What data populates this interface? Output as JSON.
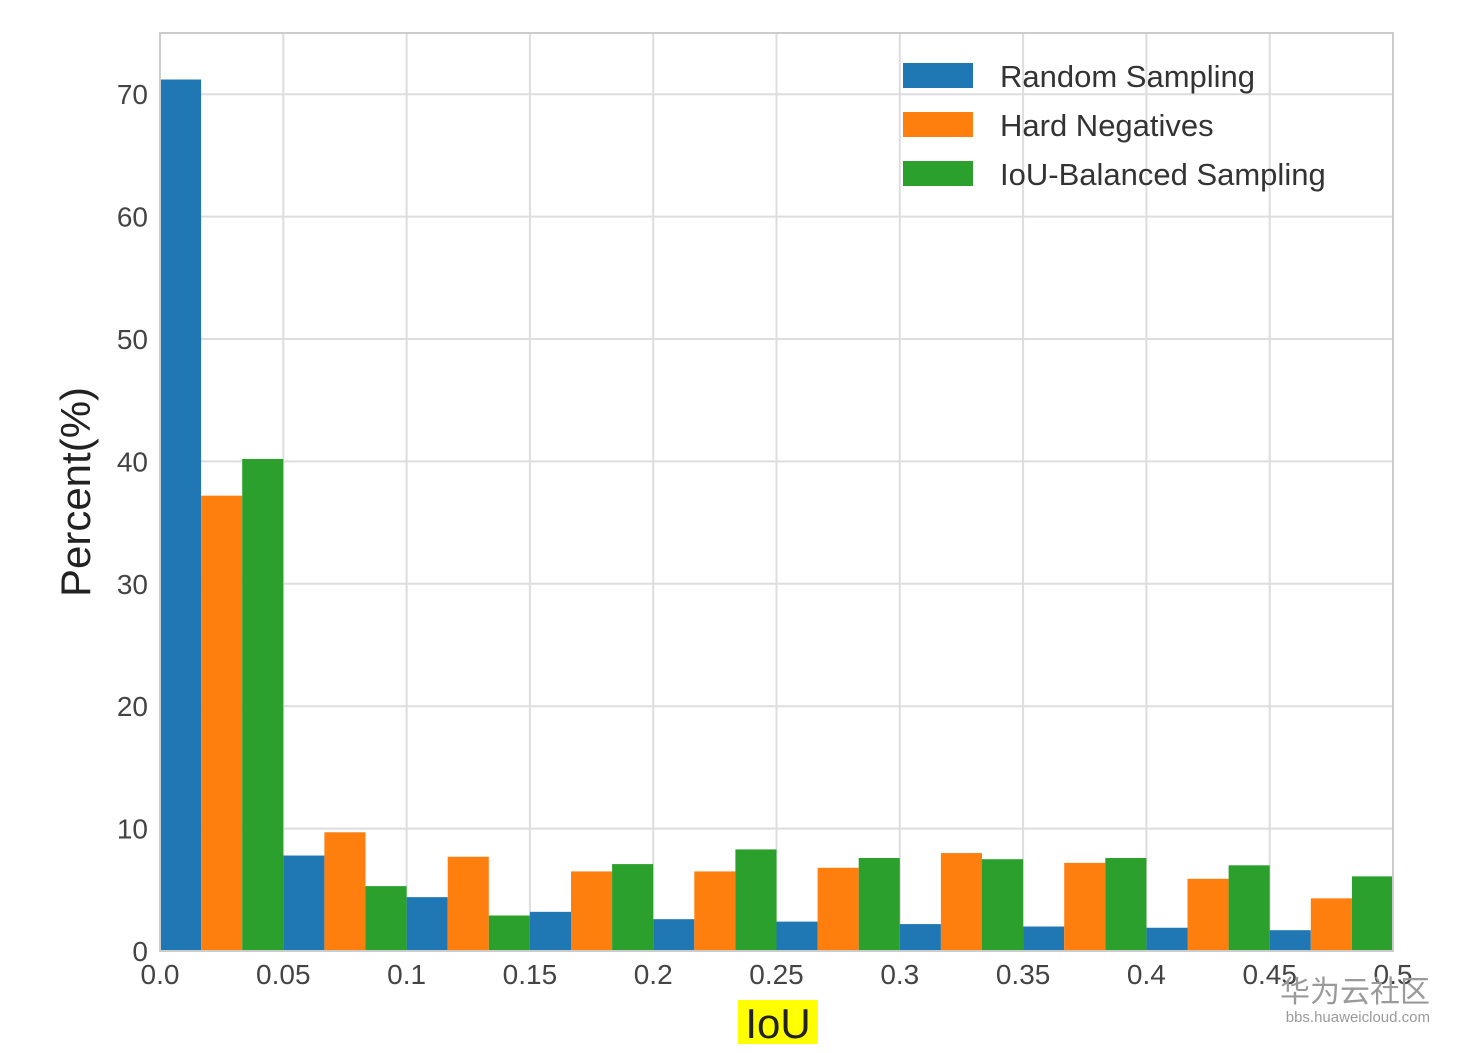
{
  "chart_data": {
    "type": "bar",
    "title": "",
    "xlabel": "IoU",
    "ylabel": "Percent(%)",
    "xlim": [
      0,
      0.5
    ],
    "ylim": [
      0,
      75
    ],
    "bin_width": 0.05,
    "x": [
      0.0,
      0.05,
      0.1,
      0.15,
      0.2,
      0.25,
      0.3,
      0.35,
      0.4,
      0.45
    ],
    "x_tick_labels": [
      "0.0",
      "0.05",
      "0.1",
      "0.15",
      "0.2",
      "0.25",
      "0.3",
      "0.35",
      "0.4",
      "0.45",
      "0.5"
    ],
    "y_ticks": [
      0,
      10,
      20,
      30,
      40,
      50,
      60,
      70
    ],
    "grid": true,
    "legend_position": "top-right",
    "xlabel_highlight_color": "#ffff00",
    "series": [
      {
        "name": "Random Sampling",
        "color": "#1f77b4",
        "values": [
          71.2,
          7.8,
          4.4,
          3.2,
          2.6,
          2.4,
          2.2,
          2.0,
          1.9,
          1.7
        ]
      },
      {
        "name": "Hard Negatives",
        "color": "#ff7f0e",
        "values": [
          37.2,
          9.7,
          7.7,
          6.5,
          6.5,
          6.8,
          8.0,
          7.2,
          5.9,
          4.3
        ]
      },
      {
        "name": "IoU-Balanced Sampling",
        "color": "#2ca02c",
        "values": [
          40.2,
          5.3,
          2.9,
          7.1,
          8.3,
          7.6,
          7.5,
          7.6,
          7.0,
          6.1
        ]
      }
    ]
  },
  "watermark": {
    "title": "华为云社区",
    "url": "bbs.huaweicloud.com"
  }
}
